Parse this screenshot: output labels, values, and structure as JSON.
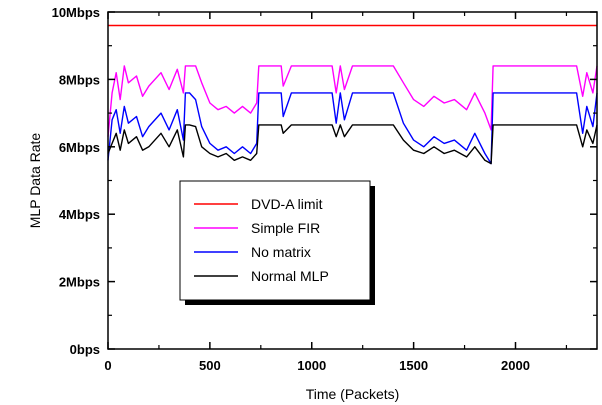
{
  "chart_data": {
    "type": "line",
    "title": "",
    "xlabel": "Time (Packets)",
    "ylabel": "MLP Data Rate",
    "xlim": [
      0,
      2400
    ],
    "ylim": [
      0,
      10
    ],
    "x_ticks": [
      {
        "value": 0,
        "label": "0"
      },
      {
        "value": 500,
        "label": "500"
      },
      {
        "value": 1000,
        "label": "1000"
      },
      {
        "value": 1500,
        "label": "1500"
      },
      {
        "value": 2000,
        "label": "2000"
      }
    ],
    "y_ticks": [
      {
        "value": 0,
        "label": "0bps"
      },
      {
        "value": 2,
        "label": "2Mbps"
      },
      {
        "value": 4,
        "label": "4Mbps"
      },
      {
        "value": 6,
        "label": "6Mbps"
      },
      {
        "value": 8,
        "label": "8Mbps"
      },
      {
        "value": 10,
        "label": "10Mbps"
      }
    ],
    "grid": false,
    "legend": {
      "placement": "center-left"
    },
    "series": [
      {
        "name": "DVD-A limit",
        "color": "#ff0000",
        "x": [
          0,
          2400
        ],
        "y": [
          9.6,
          9.6
        ]
      },
      {
        "name": "Simple FIR",
        "color": "#ff00ff",
        "x": [
          0,
          20,
          40,
          60,
          80,
          100,
          140,
          170,
          200,
          260,
          300,
          340,
          370,
          380,
          400,
          430,
          460,
          500,
          540,
          580,
          620,
          660,
          700,
          730,
          740,
          800,
          850,
          860,
          900,
          1000,
          1100,
          1120,
          1140,
          1160,
          1200,
          1300,
          1400,
          1450,
          1500,
          1550,
          1600,
          1650,
          1700,
          1760,
          1800,
          1850,
          1880,
          1890,
          1900,
          1950,
          2000,
          2100,
          2200,
          2300,
          2330,
          2350,
          2380,
          2400
        ],
        "y": [
          6.3,
          7.6,
          8.2,
          7.4,
          8.4,
          7.9,
          8.1,
          7.5,
          7.8,
          8.2,
          7.7,
          8.3,
          7.6,
          8.4,
          8.4,
          8.4,
          7.9,
          7.3,
          7.1,
          7.2,
          7.0,
          7.2,
          7.0,
          7.3,
          8.4,
          8.4,
          8.4,
          7.8,
          8.4,
          8.4,
          8.4,
          7.6,
          8.4,
          7.7,
          8.4,
          8.4,
          8.4,
          7.9,
          7.4,
          7.2,
          7.5,
          7.3,
          7.4,
          7.1,
          7.6,
          7.0,
          6.5,
          8.4,
          8.4,
          8.4,
          8.4,
          8.4,
          8.4,
          8.4,
          7.5,
          8.2,
          7.6,
          8.4
        ]
      },
      {
        "name": "No matrix",
        "color": "#0000ff",
        "x": [
          0,
          20,
          40,
          60,
          80,
          100,
          140,
          170,
          200,
          260,
          300,
          340,
          370,
          380,
          400,
          430,
          460,
          500,
          540,
          580,
          620,
          660,
          700,
          730,
          740,
          800,
          850,
          860,
          900,
          1000,
          1100,
          1120,
          1140,
          1160,
          1200,
          1300,
          1400,
          1450,
          1500,
          1550,
          1600,
          1650,
          1700,
          1760,
          1800,
          1850,
          1880,
          1890,
          1900,
          1950,
          2000,
          2100,
          2200,
          2300,
          2330,
          2350,
          2380,
          2400
        ],
        "y": [
          5.6,
          6.8,
          7.1,
          6.4,
          7.2,
          6.7,
          6.9,
          6.3,
          6.6,
          7.0,
          6.5,
          7.1,
          6.2,
          7.6,
          7.6,
          7.4,
          6.6,
          6.1,
          5.9,
          6.0,
          5.8,
          6.0,
          5.8,
          6.1,
          7.6,
          7.6,
          7.6,
          6.9,
          7.6,
          7.6,
          7.6,
          6.7,
          7.6,
          6.8,
          7.6,
          7.6,
          7.6,
          6.7,
          6.2,
          6.0,
          6.3,
          6.1,
          6.2,
          5.9,
          6.4,
          5.8,
          5.5,
          7.6,
          7.6,
          7.6,
          7.6,
          7.6,
          7.6,
          7.6,
          6.4,
          7.2,
          6.6,
          7.6
        ]
      },
      {
        "name": "Normal MLP",
        "color": "#000000",
        "x": [
          0,
          20,
          40,
          60,
          80,
          100,
          140,
          170,
          200,
          260,
          300,
          340,
          370,
          380,
          400,
          430,
          460,
          500,
          540,
          580,
          620,
          660,
          700,
          730,
          740,
          800,
          850,
          860,
          900,
          1000,
          1100,
          1120,
          1140,
          1160,
          1200,
          1300,
          1400,
          1450,
          1500,
          1550,
          1600,
          1650,
          1700,
          1760,
          1800,
          1850,
          1880,
          1890,
          1900,
          1950,
          2000,
          2100,
          2200,
          2300,
          2330,
          2350,
          2380,
          2400
        ],
        "y": [
          5.8,
          6.1,
          6.4,
          5.9,
          6.5,
          6.1,
          6.3,
          5.9,
          6.0,
          6.4,
          6.0,
          6.5,
          5.7,
          6.65,
          6.65,
          6.6,
          6.0,
          5.8,
          5.7,
          5.8,
          5.6,
          5.7,
          5.6,
          5.8,
          6.65,
          6.65,
          6.65,
          6.4,
          6.65,
          6.65,
          6.65,
          6.3,
          6.65,
          6.3,
          6.65,
          6.65,
          6.65,
          6.2,
          5.9,
          5.8,
          6.0,
          5.8,
          5.9,
          5.7,
          6.0,
          5.6,
          5.5,
          6.65,
          6.65,
          6.65,
          6.65,
          6.65,
          6.65,
          6.65,
          6.0,
          6.5,
          6.1,
          6.65
        ]
      }
    ]
  }
}
